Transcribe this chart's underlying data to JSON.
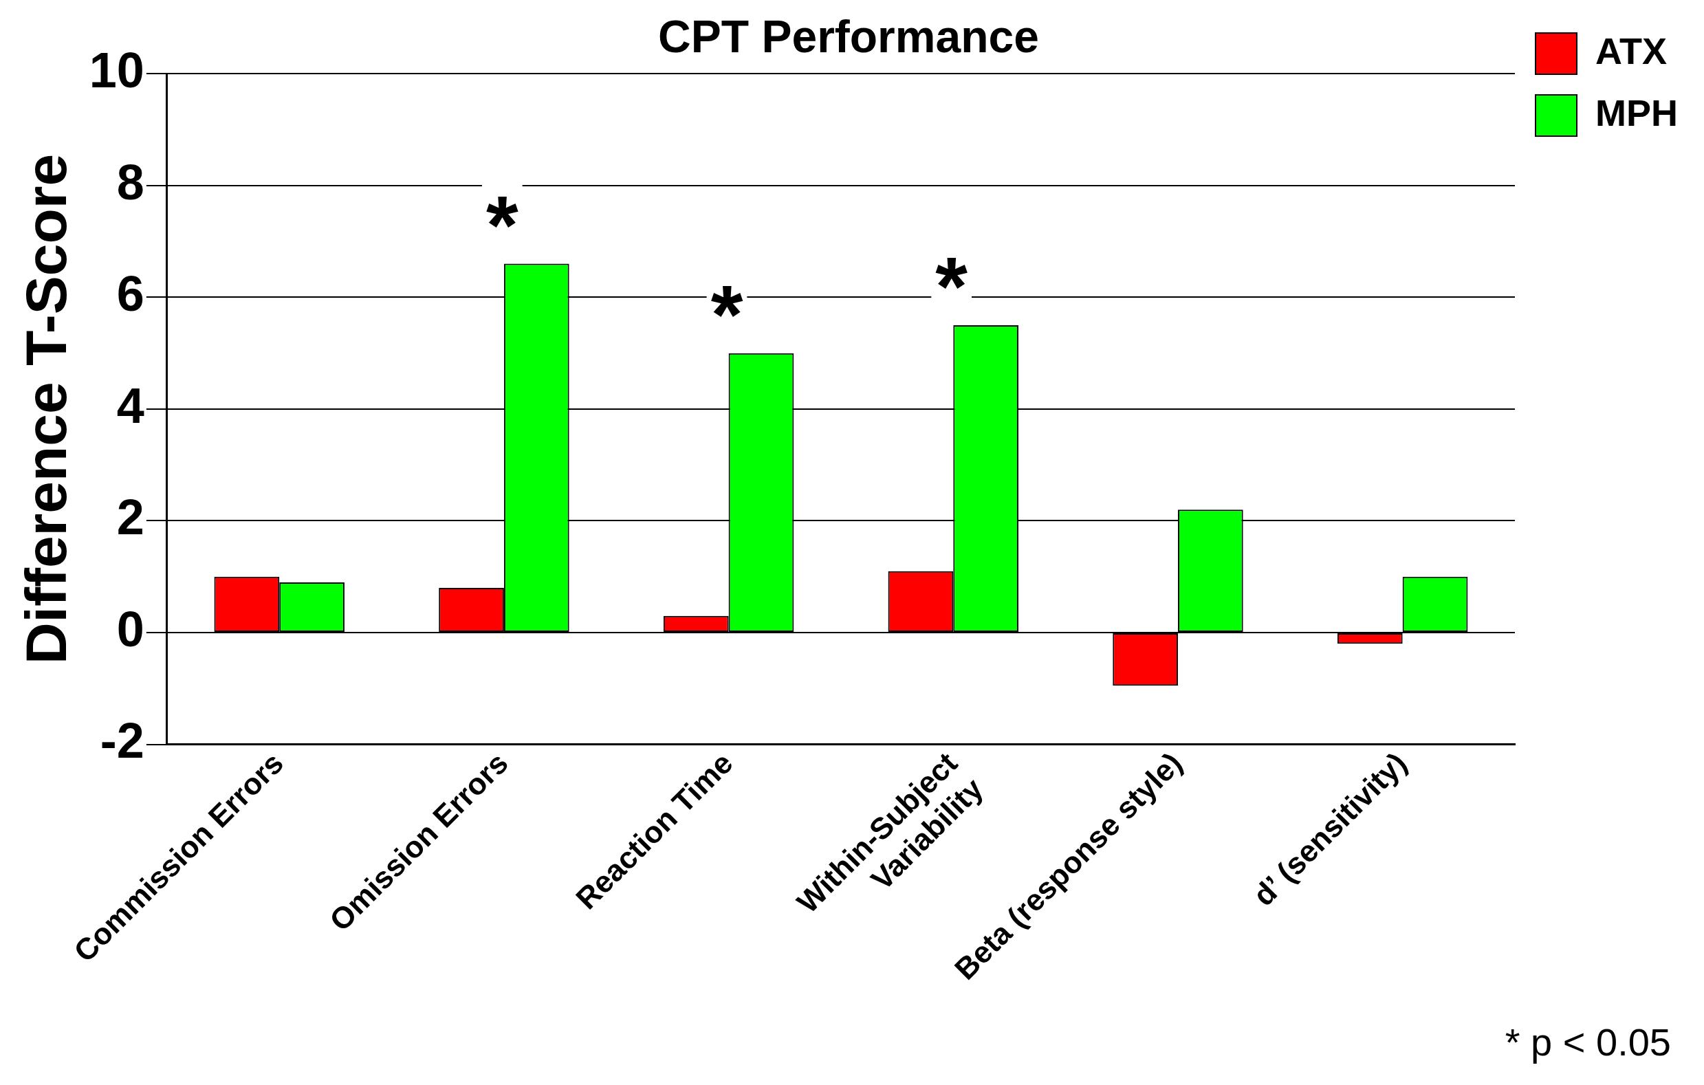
{
  "chart_data": {
    "type": "bar",
    "title": "CPT Performance",
    "ylabel": "Difference T-Score",
    "categories": [
      "Commission Errors",
      "Omission Errors",
      "Reaction Time",
      "Within-Subject\nVariability",
      "Beta (response style)",
      "d’ (sensitivity)"
    ],
    "series": [
      {
        "name": "ATX",
        "color": "#ff0000",
        "values": [
          1.0,
          0.8,
          0.3,
          1.1,
          -0.95,
          -0.2
        ]
      },
      {
        "name": "MPH",
        "color": "#00ff00",
        "values": [
          0.9,
          6.6,
          5.0,
          5.5,
          2.2,
          1.0
        ]
      }
    ],
    "ylim": [
      -2,
      10
    ],
    "yticks": [
      -2,
      0,
      2,
      4,
      6,
      8,
      10
    ],
    "grid": "y",
    "legend": "top right",
    "annotations": [
      {
        "text": "*",
        "x": "Omission Errors",
        "y": 6.6
      },
      {
        "text": "*",
        "x": "Reaction Time",
        "y": 5.0
      },
      {
        "text": "*",
        "x": "Within-Subject\nVariability",
        "y": 5.5
      },
      "* p < 0.05"
    ]
  }
}
